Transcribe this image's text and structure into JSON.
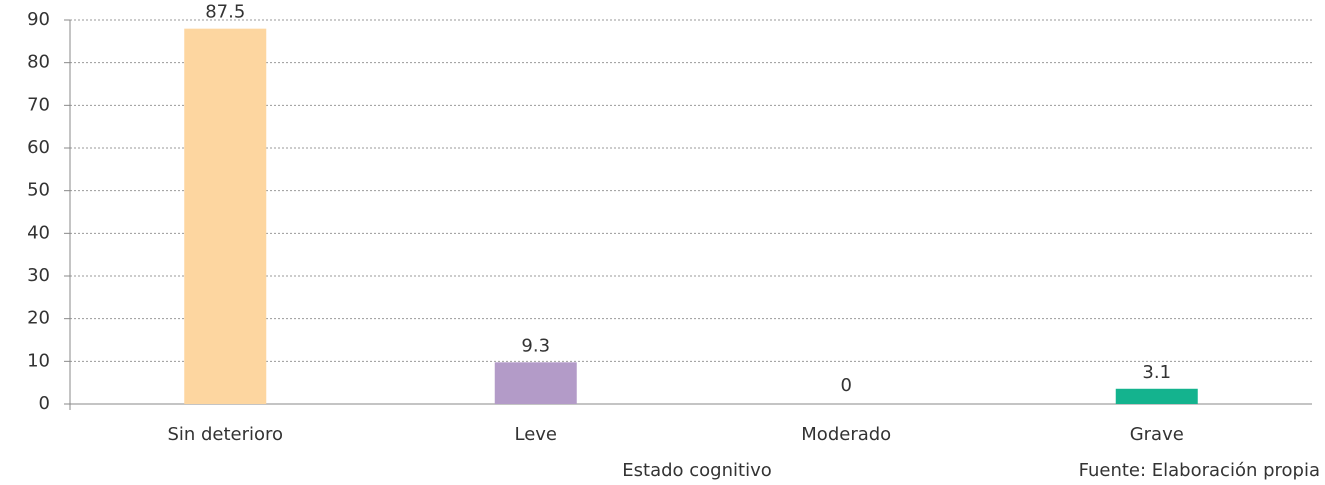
{
  "chart_data": {
    "type": "bar",
    "categories": [
      "Sin deterioro",
      "Leve",
      "Moderado",
      "Grave"
    ],
    "values": [
      87.5,
      9.3,
      0,
      3.1
    ],
    "colors": [
      "#fdd6a0",
      "#b39bc8",
      "#e0176b",
      "#14b38e"
    ],
    "x_label": "Estado cognitivo",
    "annotation": "Fuente: Elaboración propia",
    "ylim": [
      0,
      90
    ],
    "yticks": [
      0,
      10,
      20,
      30,
      40,
      50,
      60,
      70,
      80,
      90
    ],
    "grid": true
  }
}
